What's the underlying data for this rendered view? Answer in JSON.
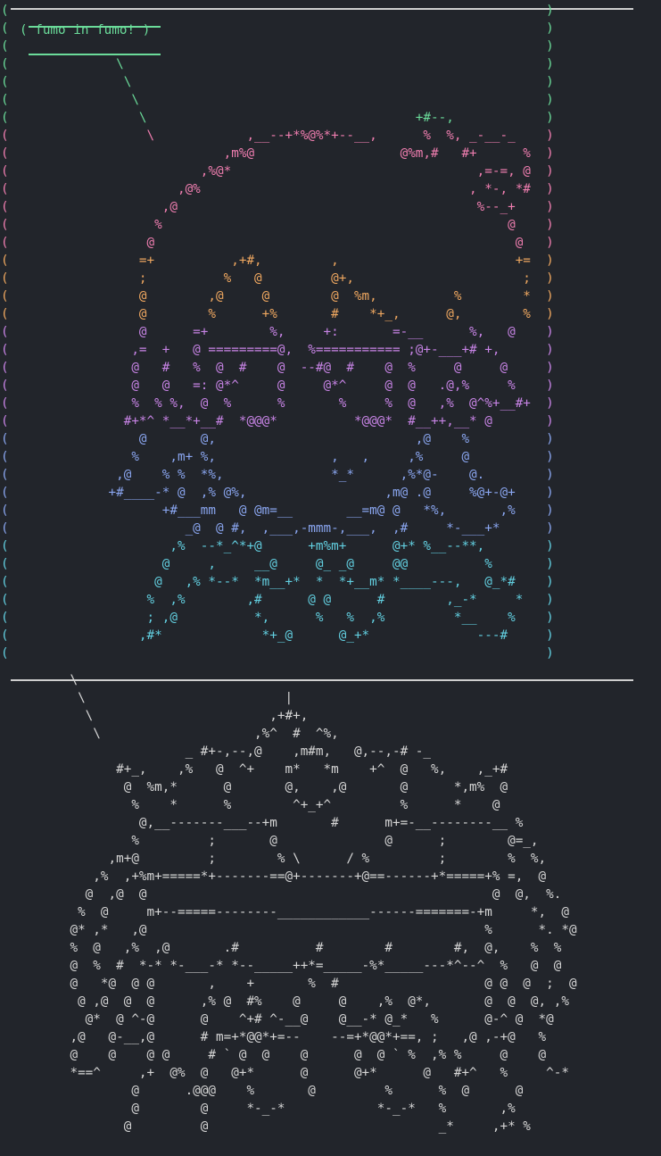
{
  "speech_text": "( fumo in fumo! )",
  "colors": {
    "background": "#22252b",
    "frame": "#cfcfcf",
    "speech": "#6bdc9a",
    "gradient": [
      "#f07eb0",
      "#f0a860",
      "#c884e6",
      "#8aa6f0",
      "#62cfe0",
      "#6bdc9a"
    ],
    "bottom_art": "#d6d6d6"
  },
  "top_art": [
    "(                                                                      )",
    "(                                                                      )",
    "(                                                                      )",
    "(              \\                                                       )",
    "(               \\                                                      )",
    "(                \\                                                     )",
    "(                 \\                                   +#--,            )",
    "(                  \\            ,__--+*%@%*+--__,      %  %, _-__-_    )",
    "(                            ,m%@                   @%m,#   #+      %  )",
    "(                         ,%@*                                ,=-=, @  )",
    "(                      ,@%                                   , *-, *#  )",
    "(                    ,@                                       %--_+    )",
    "(                   %                                             @    )",
    "(                  @                                               @   )",
    "(                 =+          ,+#,         ,                       +=  )",
    "(                 ;          %   @         @+,                      ;  )",
    "(                 @        ,@     @        @  %m,          %        *  )",
    "(                 @        %      +%       #    *+_,      @,        %  )",
    "(                 @      =+        %,     +:       =-__      %,   @    )",
    "(                ,=  +   @ =========@,  %=========== ;@+-___+# +,      )",
    "(                @   #   %  @  #    @  --#@  #    @  %     @     @     )",
    "(                @   @   =: @*^     @     @*^     @  @   .@,%     %    )",
    "(                %  % %,  @  %      %       %     %  @   ,%  @^%+__#+  )",
    "(               #+*^ *__*+__#  *@@@*          *@@@*  #__++,__* @       )",
    "(                 @       @,                          ,@    %          )",
    "(                %    ,m+ %,               ,   ,     ,%     @          )",
    "(              ,@    % %  *%,              *_*      ,%*@-    @.        )",
    "(             +#____-* @  ,% @%,                  ,m@ .@     %@+-@+    )",
    "(                    +#___mm   @ @m=__       __=m@ @   *%,       ,%    )",
    "(                       _@  @ #,  ,___,-mmm-,___,  ,#     *-___+*      )",
    "(                     ,%  --*_^*+@      +m%m+      @+* %__--**,        )",
    "(                    @     ,     __@     @_ _@     @@          %       )",
    "(                   @   ,% *--*  *m__+*  *  *+__m* *____---,   @_*#    )",
    "(                  %  ,%        ,#      @ @      #        ,_-*     *   )",
    "(                  ; ,@          *,      %   %  ,%         *__    %    )",
    "(                 ,#*             *+_@      @_+*              ---#     )",
    "(                                                                      )"
  ],
  "bottom_art": [
    "         \\                                                           ",
    "          \\                          |                               ",
    "           \\                       ,+#+,                             ",
    "            \\                    ,%^  #  ^%,                         ",
    "                        _ #+-,--,@    ,m#m,   @,--,-# -_             ",
    "               #+_,    ,%   @  ^+    m*   *m    +^  @   %,    ,_+#   ",
    "                @  %m,*      @       @,    ,@       @      *,m%  @    ",
    "                 %    *      %        ^+_+^         %      *    @    ",
    "                  @,__-------___--+m       #      m+=-__--------__ %  ",
    "                 %         ;       @              @      ;        @=_,",
    "              ,m+@         ;        % \\      / %         ;        %  %,",
    "            ,%  ,+%m+=====*+-------==@+-------+@==------+*=====+% =,  @",
    "           @  ,@  @                                             @  @,  %.",
    "          %  @     m+--=====--------____________------=======-+m     *,  @",
    "         @* ,*   ,@                                            %      *. *@",
    "         %  @   ,%  ,@       .#          #        #        #,  @,    %  %",
    "         @  %  #  *-* *-___-* *--_____++*=_____-%*_____---*^--^  %   @  @",
    "         @   *@  @ @       ,    +       %  #                   @ @  @  ;  @",
    "          @ ,@  @  @      ,% @  #%    @     @    ,%  @*,       @  @  @, ,%",
    "           @*  @ ^-@      @    ^+# ^-__@    @__-* @_*   %      @-^ @  *@",
    "         ,@   @-__,@      # m=+*@@*+=--    --=+*@@*+==, ;   ,@ ,-+@   %",
    "         @    @    @ @     # ` @  @    @      @  @ ` %  ,% %     @    @",
    "         *==^     ,+  @%  @   @+*      @      @+*      @   #+^   %     ^-*",
    "                 @      .@@@    %       @         %      %  @      @",
    "                 @        @     *-_-*            *-_-*   %       ,%",
    "                @         @                              _*     ,+* %"
  ]
}
